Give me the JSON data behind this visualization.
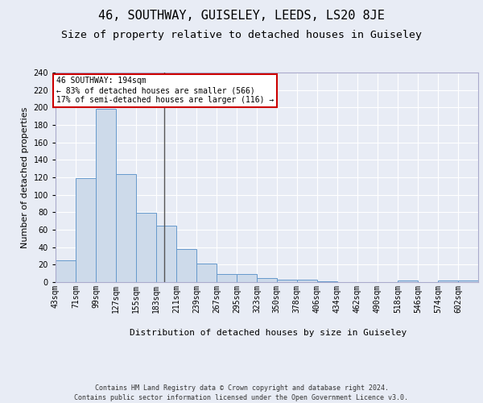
{
  "title1": "46, SOUTHWAY, GUISELEY, LEEDS, LS20 8JE",
  "title2": "Size of property relative to detached houses in Guiseley",
  "xlabel": "Distribution of detached houses by size in Guiseley",
  "ylabel": "Number of detached properties",
  "bins": [
    43,
    71,
    99,
    127,
    155,
    183,
    211,
    239,
    267,
    295,
    323,
    350,
    378,
    406,
    434,
    462,
    490,
    518,
    546,
    574,
    602
  ],
  "counts": [
    25,
    119,
    198,
    124,
    79,
    65,
    38,
    21,
    9,
    9,
    5,
    3,
    3,
    1,
    0,
    0,
    0,
    2,
    0,
    2,
    2
  ],
  "bar_color": "#cddaea",
  "bar_edge_color": "#6699cc",
  "vline_x": 194,
  "vline_color": "#555555",
  "annotation_text": "46 SOUTHWAY: 194sqm\n← 83% of detached houses are smaller (566)\n17% of semi-detached houses are larger (116) →",
  "annotation_box_color": "white",
  "annotation_box_edge": "#cc0000",
  "ylim": [
    0,
    240
  ],
  "yticks": [
    0,
    20,
    40,
    60,
    80,
    100,
    120,
    140,
    160,
    180,
    200,
    220,
    240
  ],
  "footer_line1": "Contains HM Land Registry data © Crown copyright and database right 2024.",
  "footer_line2": "Contains public sector information licensed under the Open Government Licence v3.0.",
  "bg_color": "#e8ecf5",
  "plot_bg_color": "#e8ecf5",
  "grid_color": "#ffffff",
  "title1_fontsize": 11,
  "title2_fontsize": 9.5,
  "tick_fontsize": 7,
  "ylabel_fontsize": 8,
  "xlabel_fontsize": 8,
  "footer_fontsize": 6,
  "ann_fontsize": 7
}
